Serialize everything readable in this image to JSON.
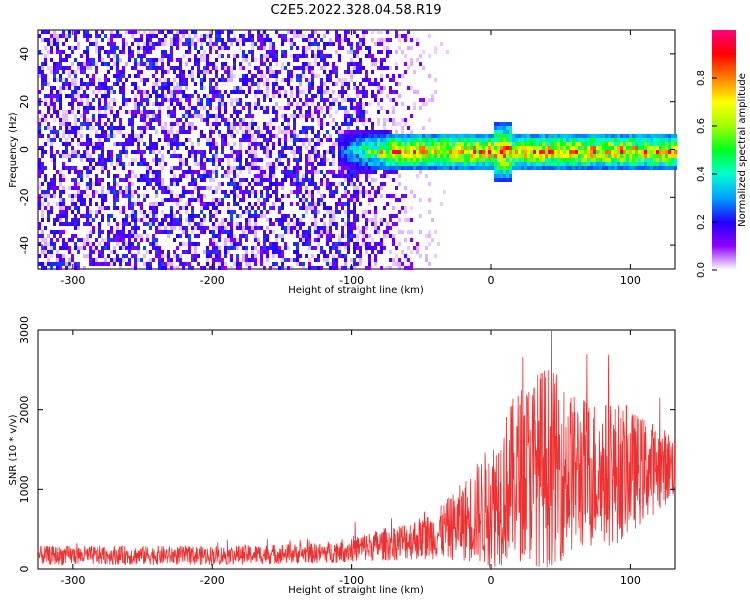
{
  "title": "C2E5.2022.328.04.58.R19",
  "chart_data": [
    {
      "type": "heatmap",
      "xlabel": "Height of straight line (km)",
      "ylabel": "Frequency (Hz)",
      "xlim": [
        -325,
        132
      ],
      "ylim": [
        -50,
        50
      ],
      "xticks": [
        -300,
        -200,
        -100,
        0,
        100
      ],
      "yticks": [
        -40,
        -20,
        0,
        20,
        40
      ],
      "colorbar": {
        "label": "Normalized spectral amplitude",
        "range": [
          0.0,
          1.0
        ],
        "ticks": [
          0.0,
          0.2,
          0.4,
          0.6,
          0.8
        ],
        "tick_labels": [
          "0.0",
          "0.2",
          "0.4",
          "0.6",
          "0.8"
        ],
        "colormap": [
          "#ffffff",
          "#8f00ff",
          "#2000ff",
          "#00a0ff",
          "#00ffd0",
          "#00ff20",
          "#a0ff00",
          "#ffff00",
          "#ff8000",
          "#ff0000",
          "#ff0080"
        ]
      },
      "features": [
        {
          "x_range": [
            -325,
            -100
          ],
          "freq_range": [
            -50,
            50
          ],
          "level": 0.12,
          "note_visible": false
        },
        {
          "x_range": [
            -100,
            132
          ],
          "freq_center": 0,
          "freq_halfwidth": 5,
          "level": 0.85
        }
      ],
      "grid": false
    },
    {
      "type": "line",
      "xlabel": "Height of straight line (km)",
      "ylabel": "SNR (10 * v/v)",
      "xlim": [
        -325,
        132
      ],
      "ylim": [
        0,
        3000
      ],
      "xticks": [
        -300,
        -200,
        -100,
        0,
        100
      ],
      "yticks": [
        0,
        1000,
        2000,
        3000
      ],
      "color": "#f03030",
      "envelope": [
        {
          "x": -325,
          "mean": 170,
          "amp": 120
        },
        {
          "x": -200,
          "mean": 170,
          "amp": 120
        },
        {
          "x": -120,
          "mean": 200,
          "amp": 130
        },
        {
          "x": -80,
          "mean": 300,
          "amp": 200
        },
        {
          "x": -40,
          "mean": 420,
          "amp": 300
        },
        {
          "x": -20,
          "mean": 600,
          "amp": 500
        },
        {
          "x": 0,
          "mean": 800,
          "amp": 800
        },
        {
          "x": 20,
          "mean": 1200,
          "amp": 1100
        },
        {
          "x": 40,
          "mean": 1300,
          "amp": 1300
        },
        {
          "x": 60,
          "mean": 1200,
          "amp": 1000
        },
        {
          "x": 90,
          "mean": 1200,
          "amp": 900
        },
        {
          "x": 132,
          "mean": 1300,
          "amp": 400
        }
      ],
      "grid": false
    }
  ]
}
